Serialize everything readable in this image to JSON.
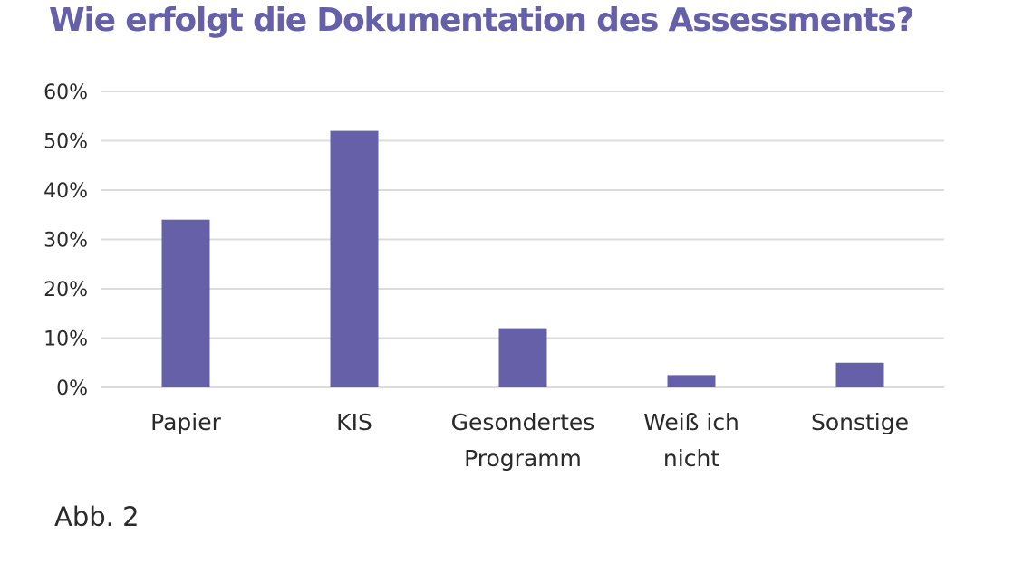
{
  "chart_data": {
    "type": "bar",
    "title": "Wie erfolgt die Dokumentation des Assessments?",
    "categories": [
      [
        "Papier"
      ],
      [
        "KIS"
      ],
      [
        "Gesondertes",
        "Programm"
      ],
      [
        "Weiß ich",
        "nicht"
      ],
      [
        "Sonstige"
      ]
    ],
    "values": [
      34,
      52,
      12,
      2.5,
      5
    ],
    "value_unit": "%",
    "ylim": [
      0,
      60
    ],
    "yticks": [
      "0%",
      "10%",
      "20%",
      "30%",
      "40%",
      "50%",
      "60%"
    ],
    "grid": true,
    "legend": "none",
    "bar_color": "#6560a8",
    "grid_color": "#dcdcdc"
  },
  "caption": "Abb. 2"
}
